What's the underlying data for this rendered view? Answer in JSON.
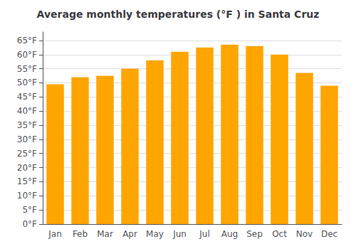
{
  "chart_data": {
    "type": "bar",
    "title": "Average monthly temperatures (°F ) in Santa Cruz",
    "categories": [
      "Jan",
      "Feb",
      "Mar",
      "Apr",
      "May",
      "Jun",
      "Jul",
      "Aug",
      "Sep",
      "Oct",
      "Nov",
      "Dec"
    ],
    "values": [
      49.5,
      52,
      52.5,
      55,
      58,
      61,
      62.5,
      63.5,
      63,
      60,
      53.5,
      49
    ],
    "color": "#FFA500",
    "ylim": [
      0,
      68
    ],
    "yticks": [
      {
        "value": 0,
        "label": "0°F"
      },
      {
        "value": 5,
        "label": "5°F"
      },
      {
        "value": 10,
        "label": "10°F"
      },
      {
        "value": 15,
        "label": "15°F"
      },
      {
        "value": 20,
        "label": "20°F"
      },
      {
        "value": 25,
        "label": "25°F"
      },
      {
        "value": 30,
        "label": "30°F"
      },
      {
        "value": 35,
        "label": "35°F"
      },
      {
        "value": 40,
        "label": "40°F"
      },
      {
        "value": 45,
        "label": "45°F"
      },
      {
        "value": 50,
        "label": "50°F"
      },
      {
        "value": 55,
        "label": "55°F"
      },
      {
        "value": 60,
        "label": "60°F"
      },
      {
        "value": 65,
        "label": "65°F"
      }
    ],
    "grid": true
  }
}
